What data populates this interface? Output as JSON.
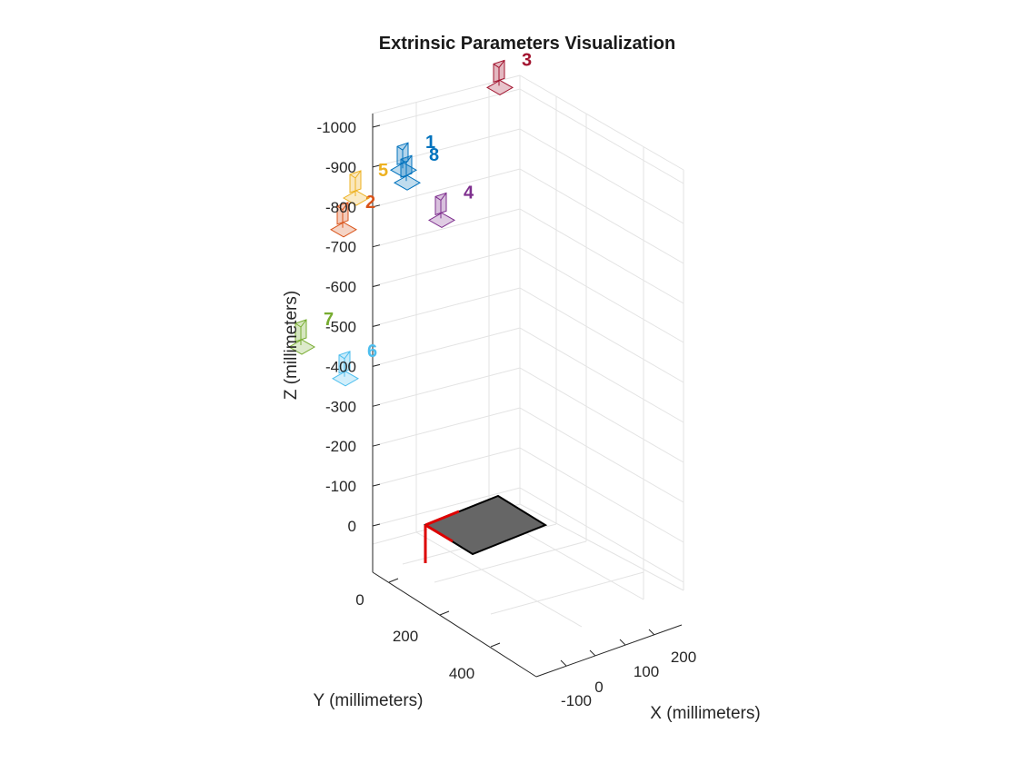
{
  "chart_data": {
    "type": "scatter",
    "title": "Extrinsic Parameters Visualization",
    "xlabel": "X (millimeters)",
    "ylabel": "Y (millimeters)",
    "zlabel": "Z (millimeters)",
    "x_ticks": [
      "-100",
      "0",
      "100",
      "200"
    ],
    "y_ticks": [
      "0",
      "200",
      "400"
    ],
    "z_ticks": [
      "-1000",
      "-900",
      "-800",
      "-700",
      "-600",
      "-500",
      "-400",
      "-300",
      "-200",
      "-100",
      "0"
    ],
    "grid": true,
    "board_color": "#666666",
    "origin_axes_color": "#dd0000",
    "cameras": [
      {
        "label": "1",
        "x": 0,
        "y": 40,
        "z": -930,
        "color": "#0072bd"
      },
      {
        "label": "2",
        "x": -30,
        "y": 110,
        "z": -860,
        "color": "#d95319"
      },
      {
        "label": "3",
        "x": 50,
        "y": -70,
        "z": -1010,
        "color": "#a2142f"
      },
      {
        "label": "4",
        "x": 90,
        "y": 90,
        "z": -780,
        "color": "#7e2f8e"
      },
      {
        "label": "5",
        "x": -140,
        "y": -60,
        "z": -880,
        "color": "#edb120"
      },
      {
        "label": "6",
        "x": 40,
        "y": 200,
        "z": -510,
        "color": "#4dbeee"
      },
      {
        "label": "7",
        "x": -110,
        "y": 80,
        "z": -600,
        "color": "#77ac30"
      },
      {
        "label": "8",
        "x": 20,
        "y": 60,
        "z": -900,
        "color": "#0072bd"
      }
    ]
  }
}
